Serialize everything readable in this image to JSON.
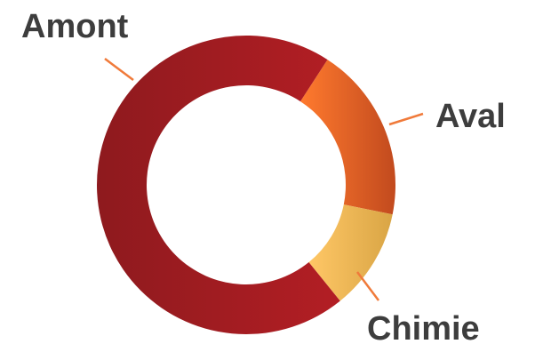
{
  "chart_data": {
    "type": "pie",
    "variant": "donut",
    "categories": [
      "Amont",
      "Aval",
      "Chimie"
    ],
    "values": [
      70,
      19,
      11
    ],
    "colors": {
      "Amont": [
        "#8e1a1e",
        "#b31e24"
      ],
      "Aval": [
        "#ff7a2e",
        "#c24a1e"
      ],
      "Chimie": [
        "#ffc766",
        "#d9a545"
      ]
    },
    "leader_color": "#f07a3a",
    "legend": "none",
    "title": ""
  }
}
